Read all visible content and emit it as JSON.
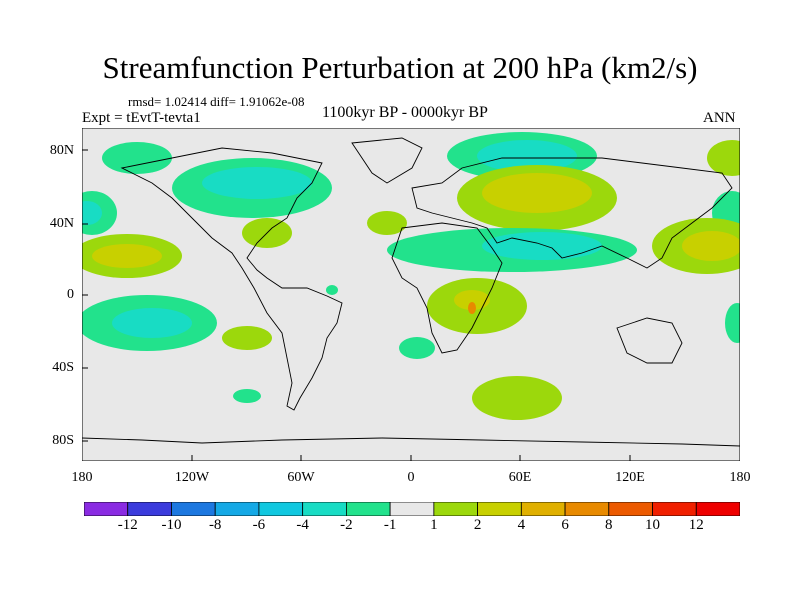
{
  "title": "Streamfunction Perturbation at 200 hPa (km2/s)",
  "stats": "rmsd= 1.02414 diff= 1.91062e-08",
  "experiment": "Expt = tEvtT-tevta1",
  "period": "1100kyr BP - 0000kyr BP",
  "season": "ANN",
  "lat_labels": [
    "80N",
    "40N",
    "0",
    "40S",
    "80S"
  ],
  "lon_labels": [
    "180",
    "120W",
    "60W",
    "0",
    "60E",
    "120E",
    "180"
  ],
  "colorbar": {
    "labels": [
      "-12",
      "-10",
      "-8",
      "-6",
      "-4",
      "-2",
      "-1",
      "1",
      "2",
      "4",
      "6",
      "8",
      "10",
      "12"
    ],
    "colors": [
      "#8a2be2",
      "#3b3bdc",
      "#1d78e0",
      "#15a9e6",
      "#11c8e0",
      "#18dcc4",
      "#22e28c",
      "#e8e8e8",
      "#9cd80c",
      "#c8d000",
      "#e0b000",
      "#e88a00",
      "#ec5a00",
      "#f02000",
      "#ee0000"
    ]
  }
}
